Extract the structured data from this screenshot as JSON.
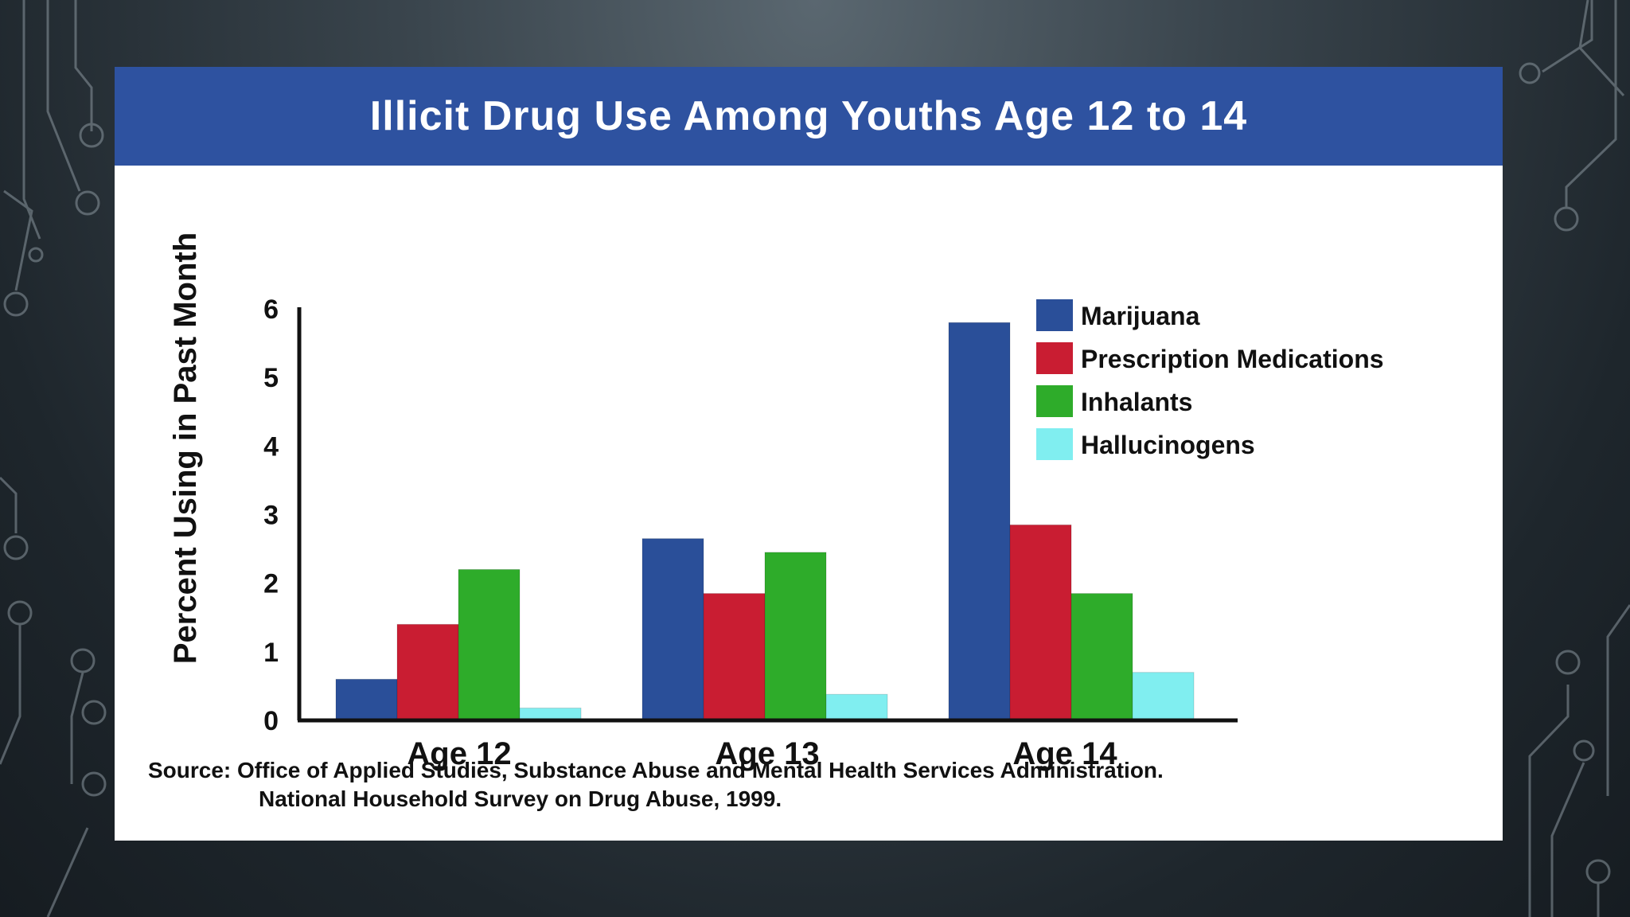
{
  "slide": {
    "colors": {
      "title_bar": "#2e52a0",
      "background": "#1e262c",
      "card": "#ffffff"
    }
  },
  "source": {
    "line1": "Source: Office of Applied Studies, Substance Abuse and Mental Health Services Administration.",
    "line2": "National Household Survey on Drug Abuse, 1999."
  },
  "chart_data": {
    "type": "bar",
    "title": "Illicit Drug Use Among Youths Age 12 to 14",
    "xlabel": "",
    "ylabel": "Percent Using in Past Month",
    "ylim": [
      0,
      6
    ],
    "yticks": [
      "0",
      "1",
      "2",
      "3",
      "4",
      "5",
      "6"
    ],
    "grid": false,
    "legend_position": "top-right",
    "categories": [
      "Age 12",
      "Age 13",
      "Age 14"
    ],
    "series": [
      {
        "name": "Marijuana",
        "color": "#2a4f99",
        "values": [
          0.6,
          2.65,
          5.8
        ]
      },
      {
        "name": "Prescription Medications",
        "color": "#c91d32",
        "values": [
          1.4,
          1.85,
          2.85
        ]
      },
      {
        "name": "Inhalants",
        "color": "#2eac2a",
        "values": [
          2.2,
          2.45,
          1.85
        ]
      },
      {
        "name": "Hallucinogens",
        "color": "#80eef0",
        "values": [
          0.18,
          0.38,
          0.7
        ]
      }
    ]
  }
}
